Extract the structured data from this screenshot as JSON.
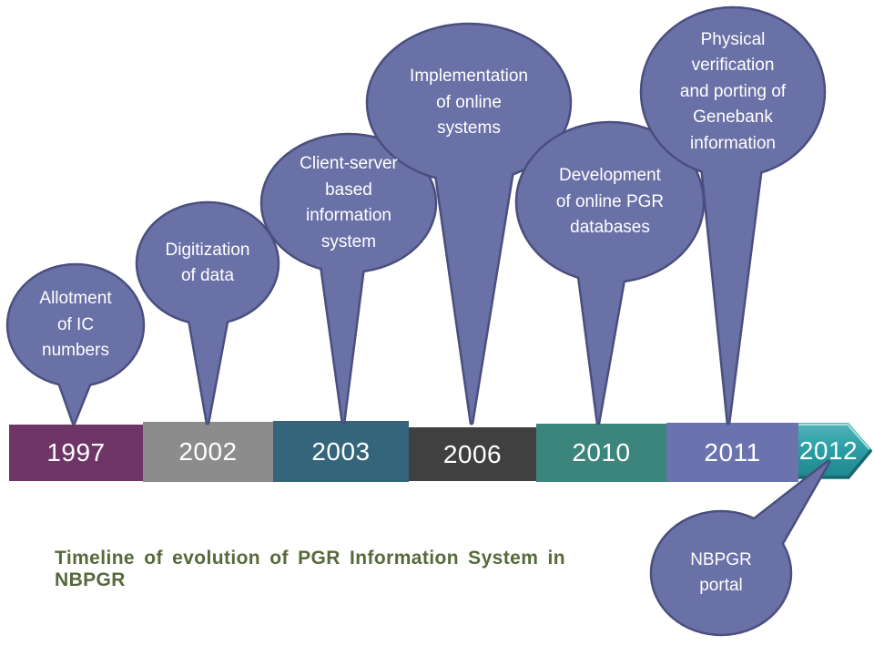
{
  "diagram": {
    "caption": {
      "text": "Timeline of evolution of PGR Information System in NBPGR",
      "color": "#57693B"
    },
    "balloon_style": {
      "fill": "#6A71A6",
      "border": "#4A4F7E",
      "text_color": "#FFFFFF"
    },
    "balloons": [
      {
        "label": "Allotment of IC numbers"
      },
      {
        "label": "Digitization of data"
      },
      {
        "label": "Client-server based information system"
      },
      {
        "label": "Implementation of online systems"
      },
      {
        "label": "Development of online PGR databases"
      },
      {
        "label": "Physical verification and porting of Genebank information"
      },
      {
        "label": "NBPGR portal"
      }
    ],
    "timeline": {
      "segments": [
        {
          "year": "1997",
          "color": "#6E3566"
        },
        {
          "year": "2002",
          "color": "#8C8C8C"
        },
        {
          "year": "2003",
          "color": "#35657B"
        },
        {
          "year": "2006",
          "color": "#404040"
        },
        {
          "year": "2010",
          "color": "#3C857C"
        },
        {
          "year": "2011",
          "color": "#6B73AE"
        }
      ],
      "arrow_segment": {
        "year": "2012",
        "color": "#2BA0A6",
        "gradient_top": "#55B3B8",
        "gradient_bottom": "#1E868C",
        "highlight": "#ABDEE0",
        "shadow": "#17696E"
      }
    }
  }
}
